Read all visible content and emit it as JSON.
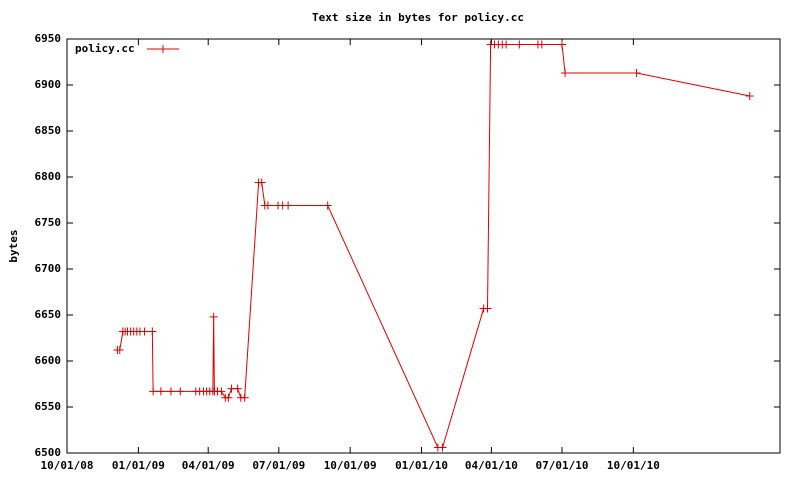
{
  "chart_data": {
    "type": "line",
    "title": "Text size in bytes for policy.cc",
    "y_label": "bytes",
    "series": [
      {
        "name": "policy.cc",
        "color": "#e00000",
        "x": [
          "12/05/08",
          "12/08/08",
          "12/12/08",
          "12/15/08",
          "12/18/08",
          "12/22/08",
          "12/26/08",
          "12/30/08",
          "01/03/09",
          "01/09/09",
          "01/19/09",
          "01/20/09",
          "01/30/09",
          "02/12/09",
          "02/24/09",
          "03/16/09",
          "03/21/09",
          "03/26/09",
          "03/30/09",
          "04/03/09",
          "04/07/09",
          "04/08/09",
          "04/09/09",
          "04/13/09",
          "04/18/09",
          "04/23/09",
          "04/27/09",
          "05/01/09",
          "05/09/09",
          "05/13/09",
          "05/18/09",
          "06/05/09",
          "06/09/09",
          "06/13/09",
          "06/17/09",
          "06/30/09",
          "07/06/09",
          "07/13/09",
          "09/02/09",
          "01/22/10",
          "01/28/10",
          "03/22/10",
          "03/27/10",
          "03/31/10",
          "04/05/10",
          "04/10/10",
          "04/15/10",
          "04/20/10",
          "05/07/10",
          "05/31/10",
          "06/05/10",
          "07/01/10",
          "07/05/10",
          "10/05/10",
          "02/28/11"
        ],
        "values": [
          6612,
          6612,
          6632,
          6632,
          6632,
          6632,
          6632,
          6632,
          6632,
          6632,
          6632,
          6567,
          6567,
          6567,
          6567,
          6567,
          6567,
          6567,
          6567,
          6567,
          6567,
          6648,
          6567,
          6567,
          6567,
          6560,
          6560,
          6570,
          6570,
          6560,
          6560,
          6794,
          6794,
          6769,
          6769,
          6769,
          6769,
          6769,
          6769,
          6506,
          6506,
          6657,
          6657,
          6944,
          6944,
          6944,
          6944,
          6944,
          6944,
          6944,
          6944,
          6944,
          6913,
          6913,
          6888
        ]
      }
    ],
    "xlim": [
      "10/01/08",
      "04/08/11"
    ],
    "xticks": [
      "10/01/08",
      "01/01/09",
      "04/01/09",
      "07/01/09",
      "10/01/09",
      "01/01/10",
      "04/01/10",
      "07/01/10",
      "10/01/10"
    ],
    "ylim": [
      6500,
      6950
    ],
    "yticks": [
      6500,
      6550,
      6600,
      6650,
      6700,
      6750,
      6800,
      6850,
      6900,
      6950
    ],
    "legend": "top-left"
  }
}
